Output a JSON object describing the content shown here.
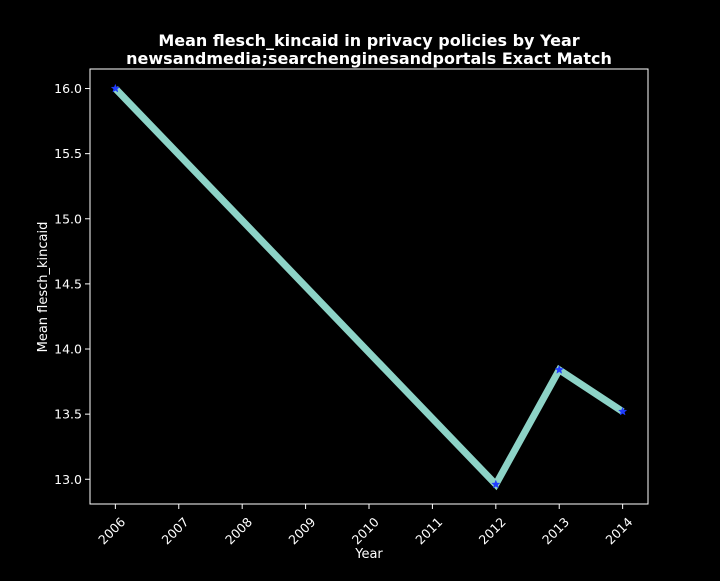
{
  "colors": {
    "background": "#000000",
    "axes": "#ffffff",
    "line": "#8dd3c7",
    "marker": "#1f3cff",
    "text": "#ffffff"
  },
  "chart_data": {
    "type": "line",
    "title": "Mean flesch_kincaid in privacy policies by Year",
    "subtitle": "newsandmedia;searchenginesandportals Exact Match",
    "xlabel": "Year",
    "ylabel": "Mean flesch_kincaid",
    "x_ticks": [
      "2006",
      "2007",
      "2008",
      "2009",
      "2010",
      "2011",
      "2012",
      "2013",
      "2014"
    ],
    "y_ticks": [
      "13.0",
      "13.5",
      "14.0",
      "14.5",
      "15.0",
      "15.5",
      "16.0"
    ],
    "xlim": [
      2005.6,
      2014.4
    ],
    "ylim": [
      12.81,
      16.15
    ],
    "grid": false,
    "marker": "star",
    "series": [
      {
        "x": [
          2006,
          2012,
          2013,
          2014
        ],
        "y": [
          16.0,
          12.96,
          13.84,
          13.52
        ]
      }
    ]
  }
}
